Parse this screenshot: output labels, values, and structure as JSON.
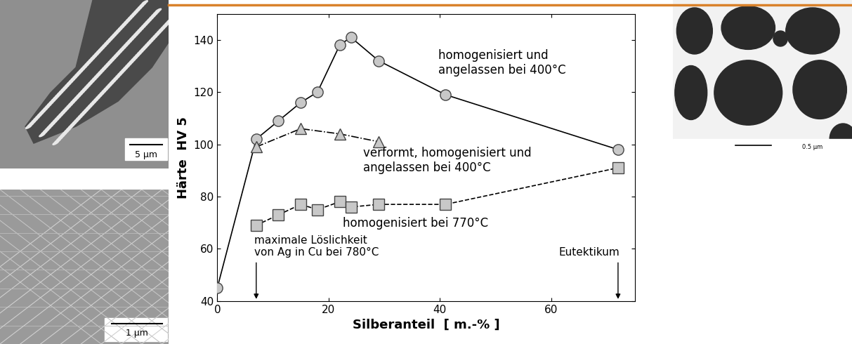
{
  "chart_data": {
    "type": "line",
    "x_label": "Silberanteil  [ m.-% ]",
    "y_label": "Härte  HV 5",
    "xlim": [
      0,
      75
    ],
    "xticks": [
      0,
      20,
      40,
      60
    ],
    "ylim": [
      40,
      150
    ],
    "yticks": [
      40,
      60,
      80,
      100,
      120,
      140
    ],
    "grid": false,
    "series": [
      {
        "name": "homogenisiert und\nangelassen bei 400°C",
        "color": "#c8c8c8",
        "marker": "circle",
        "line_style": "solid",
        "x": [
          0,
          7,
          11,
          15,
          18,
          22,
          24,
          29,
          41,
          72
        ],
        "values": [
          45,
          102,
          109,
          116,
          120,
          138,
          141,
          132,
          119,
          98
        ]
      },
      {
        "name": "verformt, homogenisiert und\nangelassen bei 400°C",
        "color": "#c8c8c8",
        "marker": "triangle",
        "line_style": "dashdot",
        "x": [
          7,
          15,
          22,
          29
        ],
        "values": [
          99,
          106,
          104,
          101
        ]
      },
      {
        "name": "homogenisiert bei 770°C",
        "color": "#c8c8c8",
        "marker": "square",
        "line_style": "dashed",
        "x": [
          7,
          11,
          15,
          18,
          22,
          24,
          29,
          41,
          72
        ],
        "values": [
          69,
          73,
          77,
          75,
          78,
          76,
          77,
          77,
          91
        ]
      }
    ],
    "annotations": [
      {
        "text": "maximale Löslichkeit\nvon Ag in Cu bei 780°C",
        "x": 7
      },
      {
        "text": "Eutektikum",
        "x": 72
      }
    ],
    "micrographs": [
      {
        "scale_bar": "5 µm"
      },
      {
        "scale_bar": "1 µm"
      },
      {
        "scale_bar": "0.5 µm"
      }
    ]
  }
}
